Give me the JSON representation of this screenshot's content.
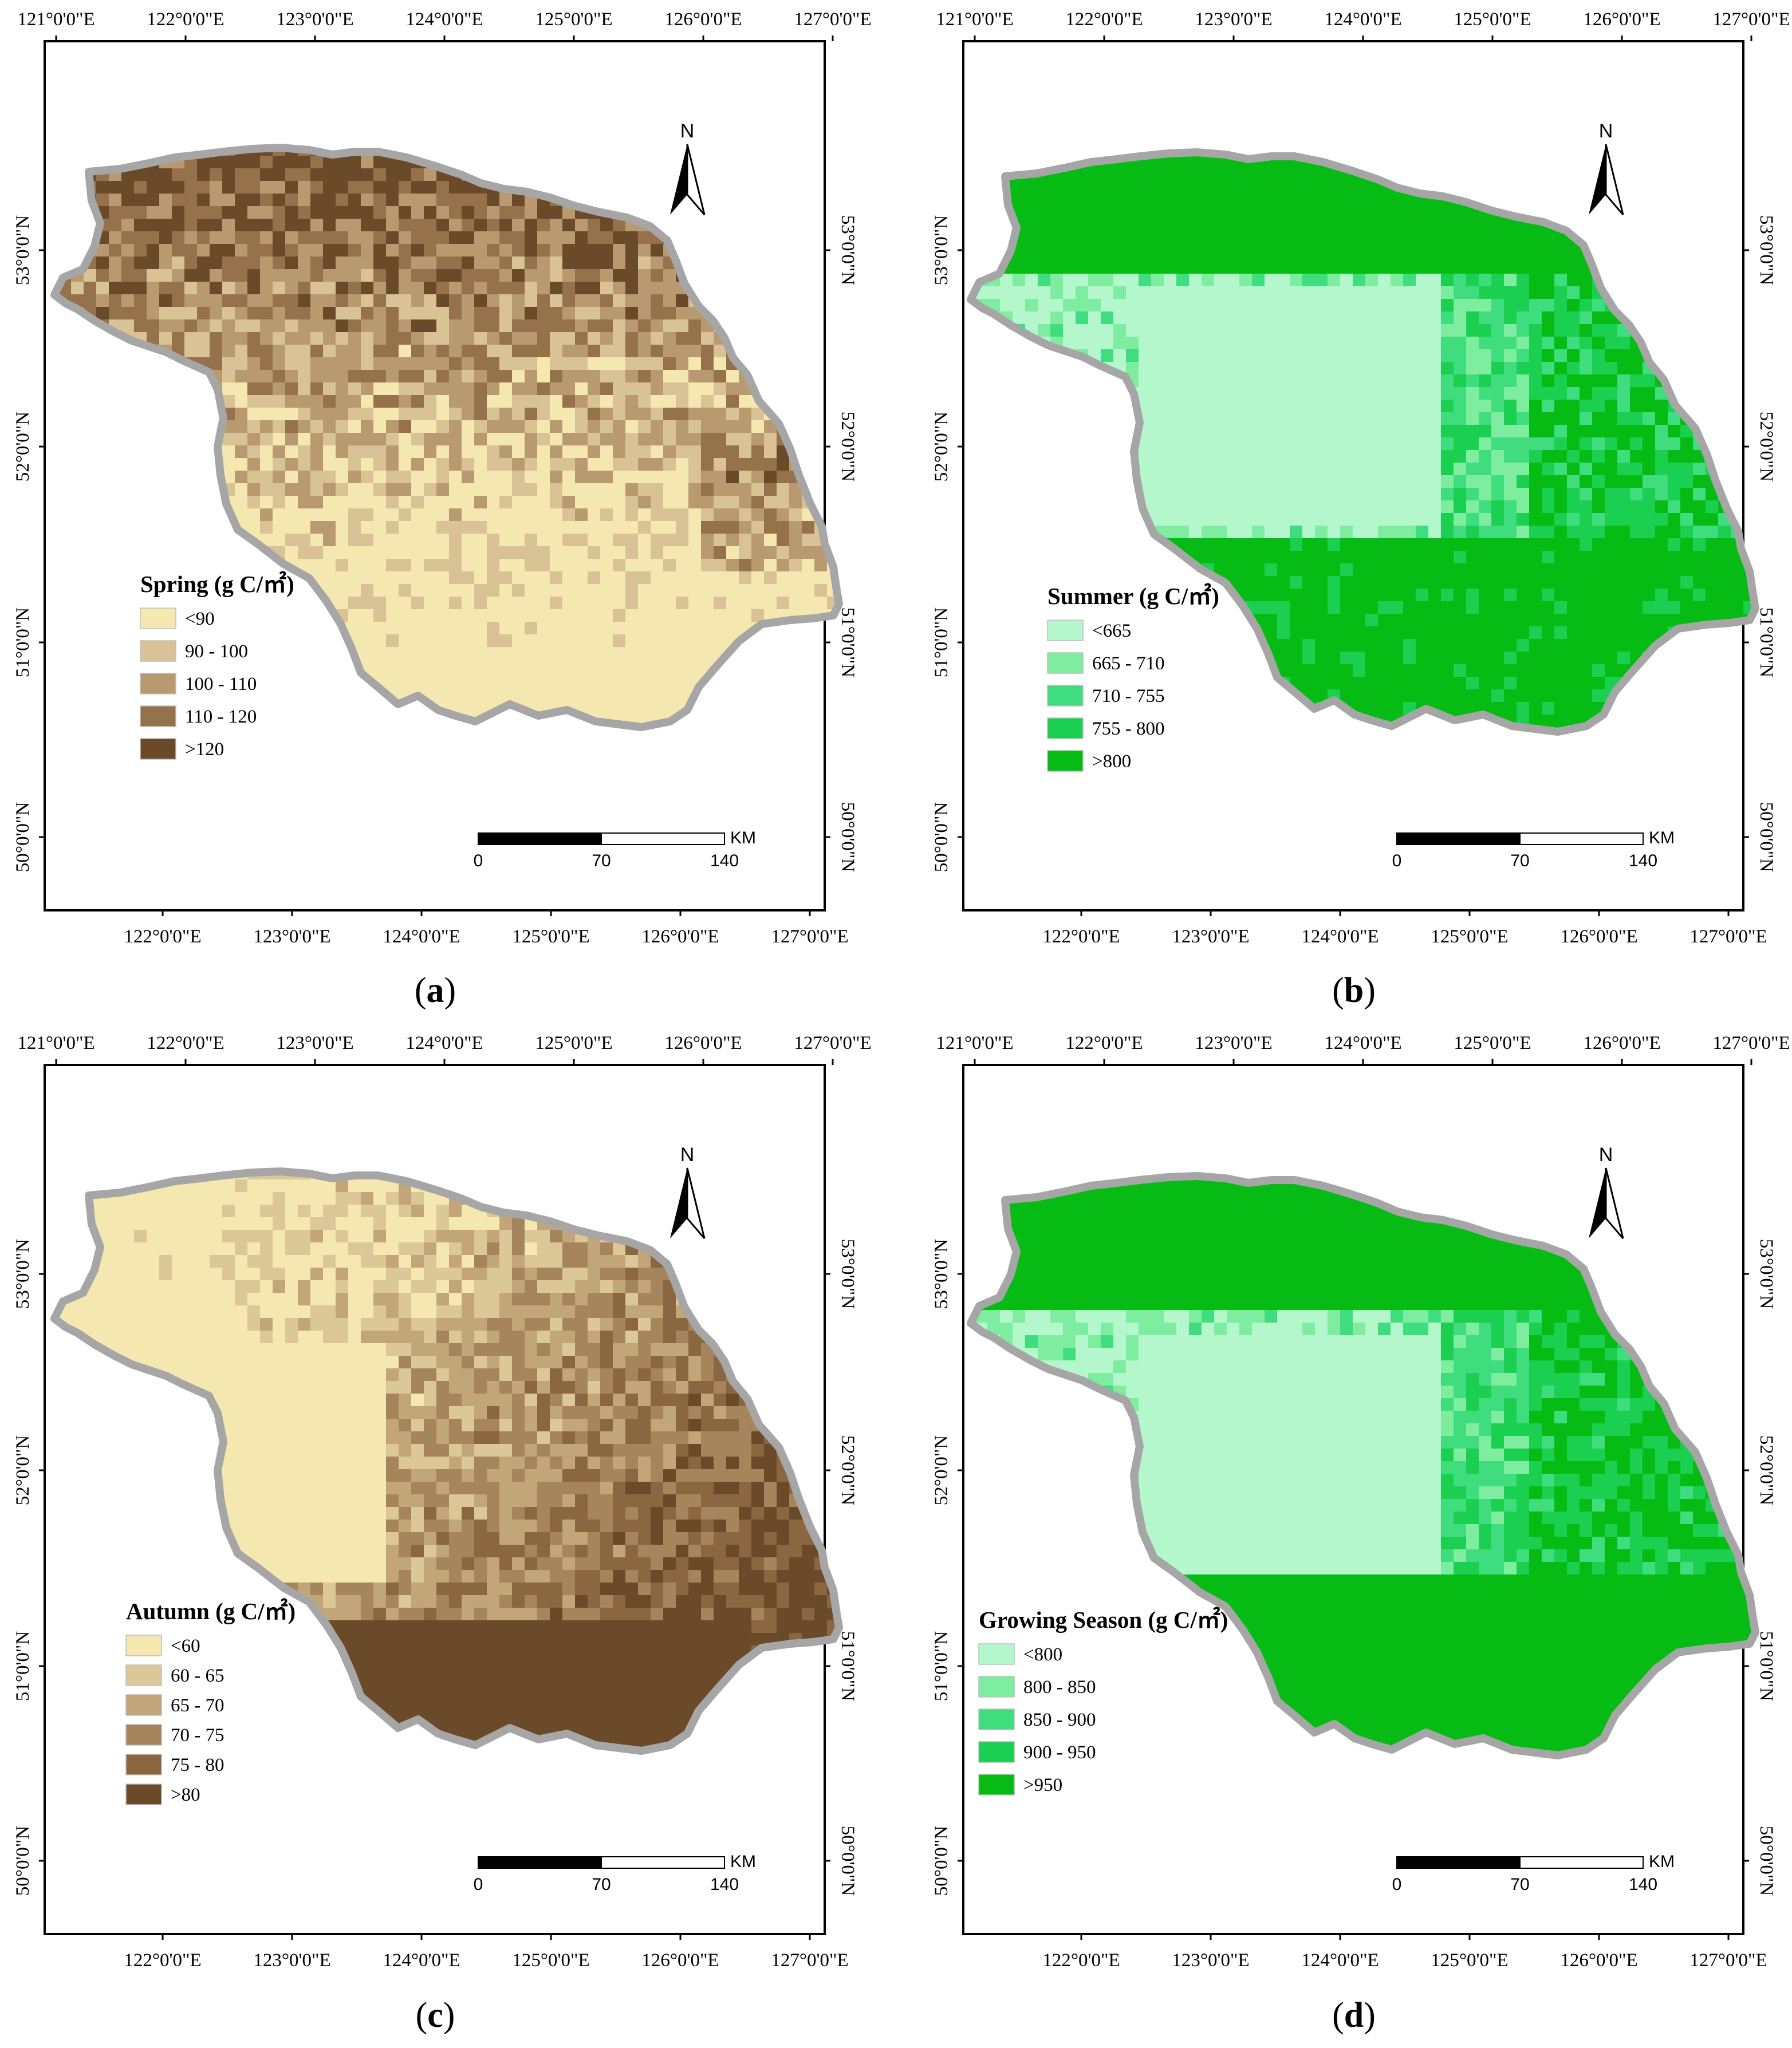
{
  "panels": [
    {
      "id": "a",
      "caption": "a",
      "legend": {
        "title": "Spring (g C/㎡)",
        "classes": [
          {
            "label": "<90",
            "color": "#f5e7b0"
          },
          {
            "label": "90 - 100",
            "color": "#d9c295"
          },
          {
            "label": "100 - 110",
            "color": "#b99a70"
          },
          {
            "label": "110 - 120",
            "color": "#96724c"
          },
          {
            "label": ">120",
            "color": "#6b4a2a"
          }
        ]
      }
    },
    {
      "id": "b",
      "caption": "b",
      "legend": {
        "title": "Summer (g C/㎡)",
        "classes": [
          {
            "label": "<665",
            "color": "#b4f7cd"
          },
          {
            "label": "665 - 710",
            "color": "#7fed9f"
          },
          {
            "label": "710 - 755",
            "color": "#3fdd7e"
          },
          {
            "label": "755 - 800",
            "color": "#1bcf50"
          },
          {
            "label": ">800",
            "color": "#06bb14"
          }
        ]
      }
    },
    {
      "id": "c",
      "caption": "c",
      "legend": {
        "title": "Autumn (g C/㎡)",
        "classes": [
          {
            "label": "<60",
            "color": "#f5e7b0"
          },
          {
            "label": "60 - 65",
            "color": "#dcc798"
          },
          {
            "label": "65 - 70",
            "color": "#c3a57a"
          },
          {
            "label": "70 - 75",
            "color": "#a6845c"
          },
          {
            "label": "75 - 80",
            "color": "#8a6641"
          },
          {
            "label": ">80",
            "color": "#6b4a2a"
          }
        ]
      }
    },
    {
      "id": "d",
      "caption": "d",
      "legend": {
        "title": "Growing Season (g C/㎡)",
        "classes": [
          {
            "label": "<800",
            "color": "#b4f7cd"
          },
          {
            "label": "800 - 850",
            "color": "#7fed9f"
          },
          {
            "label": "850 - 900",
            "color": "#3fdd7e"
          },
          {
            "label": "900 - 950",
            "color": "#1bcf50"
          },
          {
            "label": ">950",
            "color": "#06bb14"
          }
        ]
      }
    }
  ],
  "grid": {
    "lon_top": [
      "121°0'0\"E",
      "122°0'0\"E",
      "123°0'0\"E",
      "124°0'0\"E",
      "125°0'0\"E",
      "126°0'0\"E",
      "127°0'0\"E"
    ],
    "lon_bottom": [
      "122°0'0\"E",
      "123°0'0\"E",
      "124°0'0\"E",
      "125°0'0\"E",
      "126°0'0\"E",
      "127°0'0\"E"
    ],
    "lat": [
      "53°0'0\"N",
      "52°0'0\"N",
      "51°0'0\"N",
      "50°0'0\"N"
    ]
  },
  "north_arrow": {
    "label": "N"
  },
  "scale_bar": {
    "ticks": [
      "0",
      "70",
      "140"
    ],
    "unit": "KM"
  },
  "colors": {
    "outline": "#a6a6a6",
    "frame": "#000000"
  }
}
